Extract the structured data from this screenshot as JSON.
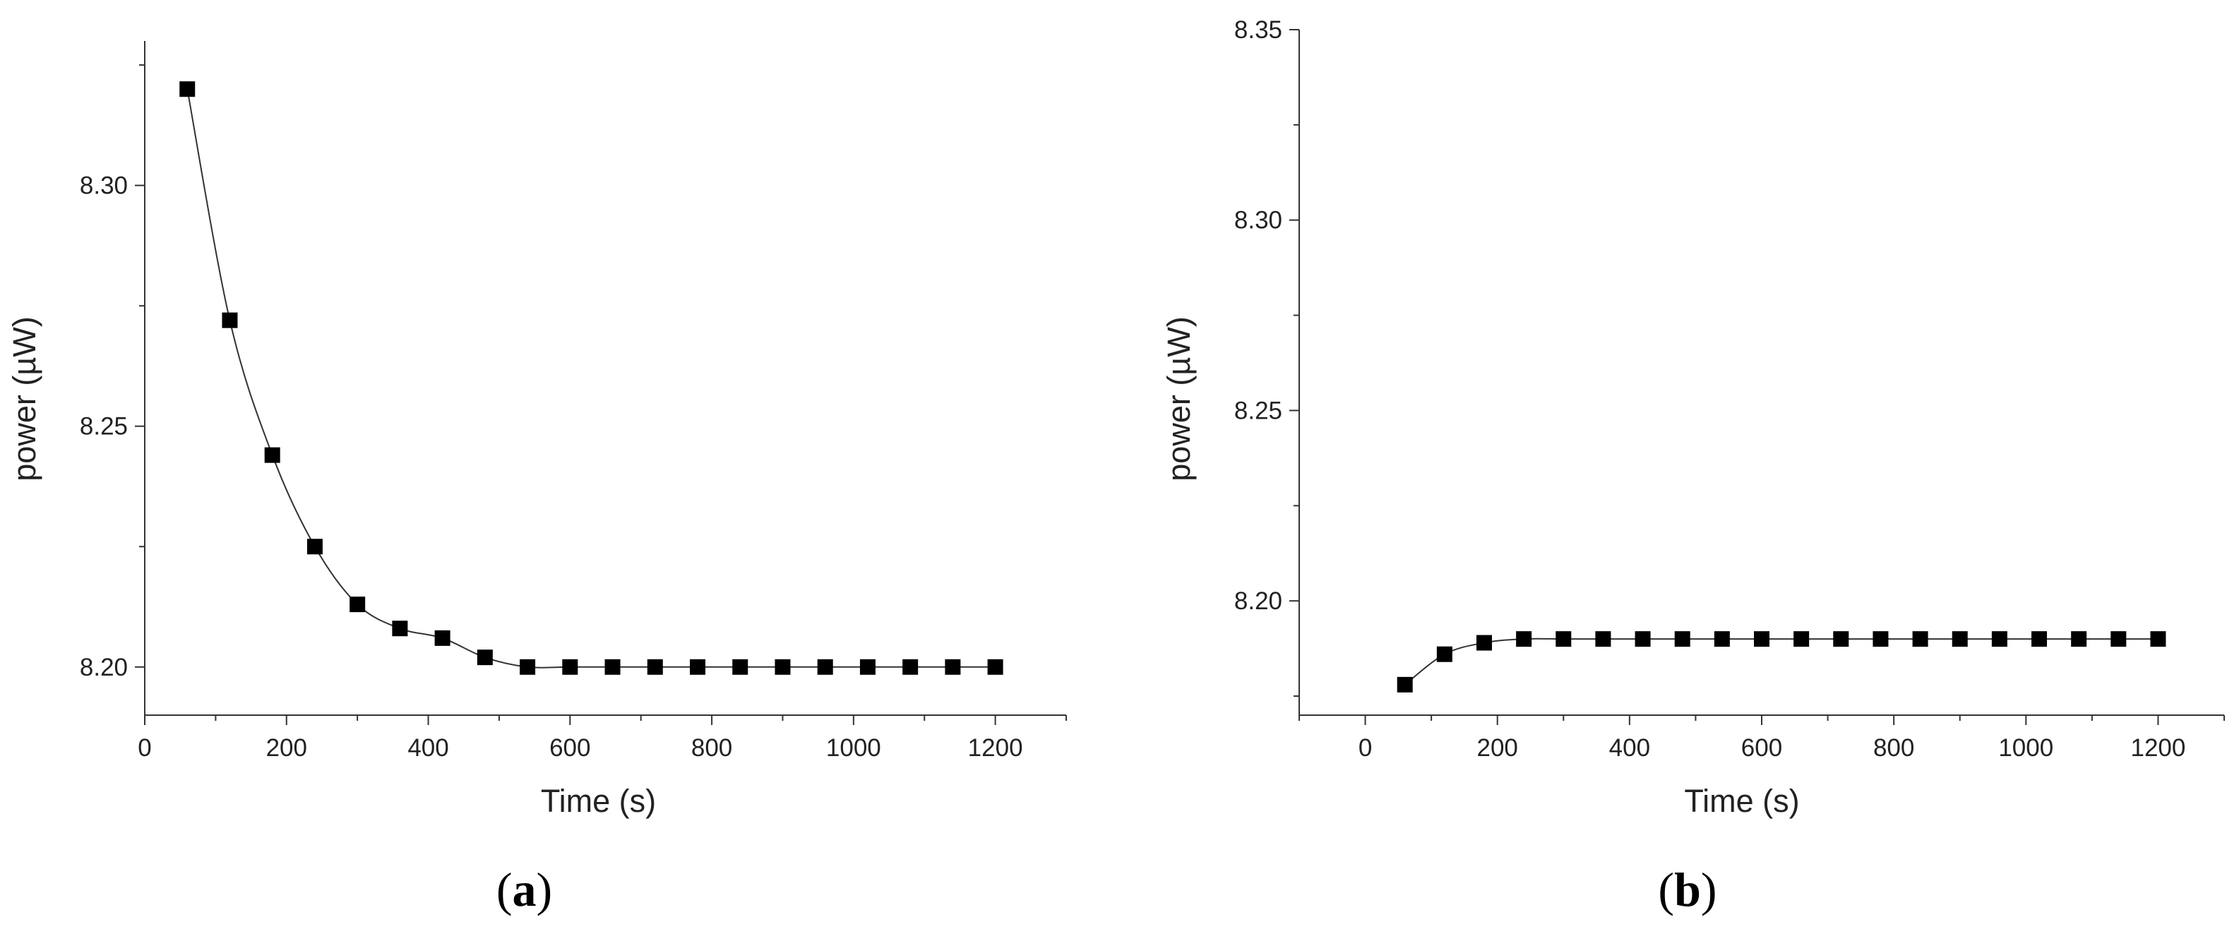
{
  "chart_data": [
    {
      "type": "line",
      "panel_label": "(a)",
      "panel_label_parts": {
        "open": "(",
        "letter": "a",
        "close": ")"
      },
      "xlabel": "Time (s)",
      "ylabel": "power (µW)",
      "xlim": [
        0,
        1300
      ],
      "ylim": [
        8.19,
        8.33
      ],
      "xticks": [
        0,
        200,
        400,
        600,
        800,
        1000,
        1200
      ],
      "xtick_labels": [
        "0",
        "200",
        "400",
        "600",
        "800",
        "1000",
        "1200"
      ],
      "yticks": [
        8.2,
        8.25,
        8.3
      ],
      "ytick_labels": [
        "8.20",
        "8.25",
        "8.30"
      ],
      "marker": "square",
      "grid": false,
      "series": [
        {
          "x": [
            60,
            120,
            180,
            240,
            300,
            360,
            420,
            480,
            540,
            600,
            660,
            720,
            780,
            840,
            900,
            960,
            1020,
            1080,
            1140,
            1200
          ],
          "y": [
            8.32,
            8.272,
            8.244,
            8.225,
            8.213,
            8.208,
            8.206,
            8.202,
            8.2,
            8.2,
            8.2,
            8.2,
            8.2,
            8.2,
            8.2,
            8.2,
            8.2,
            8.2,
            8.2,
            8.2
          ]
        }
      ]
    },
    {
      "type": "line",
      "panel_label": "(b)",
      "panel_label_parts": {
        "open": "(",
        "letter": "b",
        "close": ")"
      },
      "xlabel": "Time (s)",
      "ylabel": "power (µW)",
      "xlim": [
        -100,
        1300
      ],
      "ylim": [
        8.17,
        8.35
      ],
      "xticks": [
        0,
        200,
        400,
        600,
        800,
        1000,
        1200
      ],
      "xtick_labels": [
        "0",
        "200",
        "400",
        "600",
        "800",
        "1000",
        "1200"
      ],
      "yticks": [
        8.2,
        8.25,
        8.3,
        8.35
      ],
      "ytick_labels": [
        "8.20",
        "8.25",
        "8.30",
        "8.35"
      ],
      "marker": "square",
      "grid": false,
      "series": [
        {
          "x": [
            60,
            120,
            180,
            240,
            300,
            360,
            420,
            480,
            540,
            600,
            660,
            720,
            780,
            840,
            900,
            960,
            1020,
            1080,
            1140,
            1200
          ],
          "y": [
            8.178,
            8.186,
            8.189,
            8.19,
            8.19,
            8.19,
            8.19,
            8.19,
            8.19,
            8.19,
            8.19,
            8.19,
            8.19,
            8.19,
            8.19,
            8.19,
            8.19,
            8.19,
            8.19,
            8.19
          ]
        }
      ]
    }
  ]
}
